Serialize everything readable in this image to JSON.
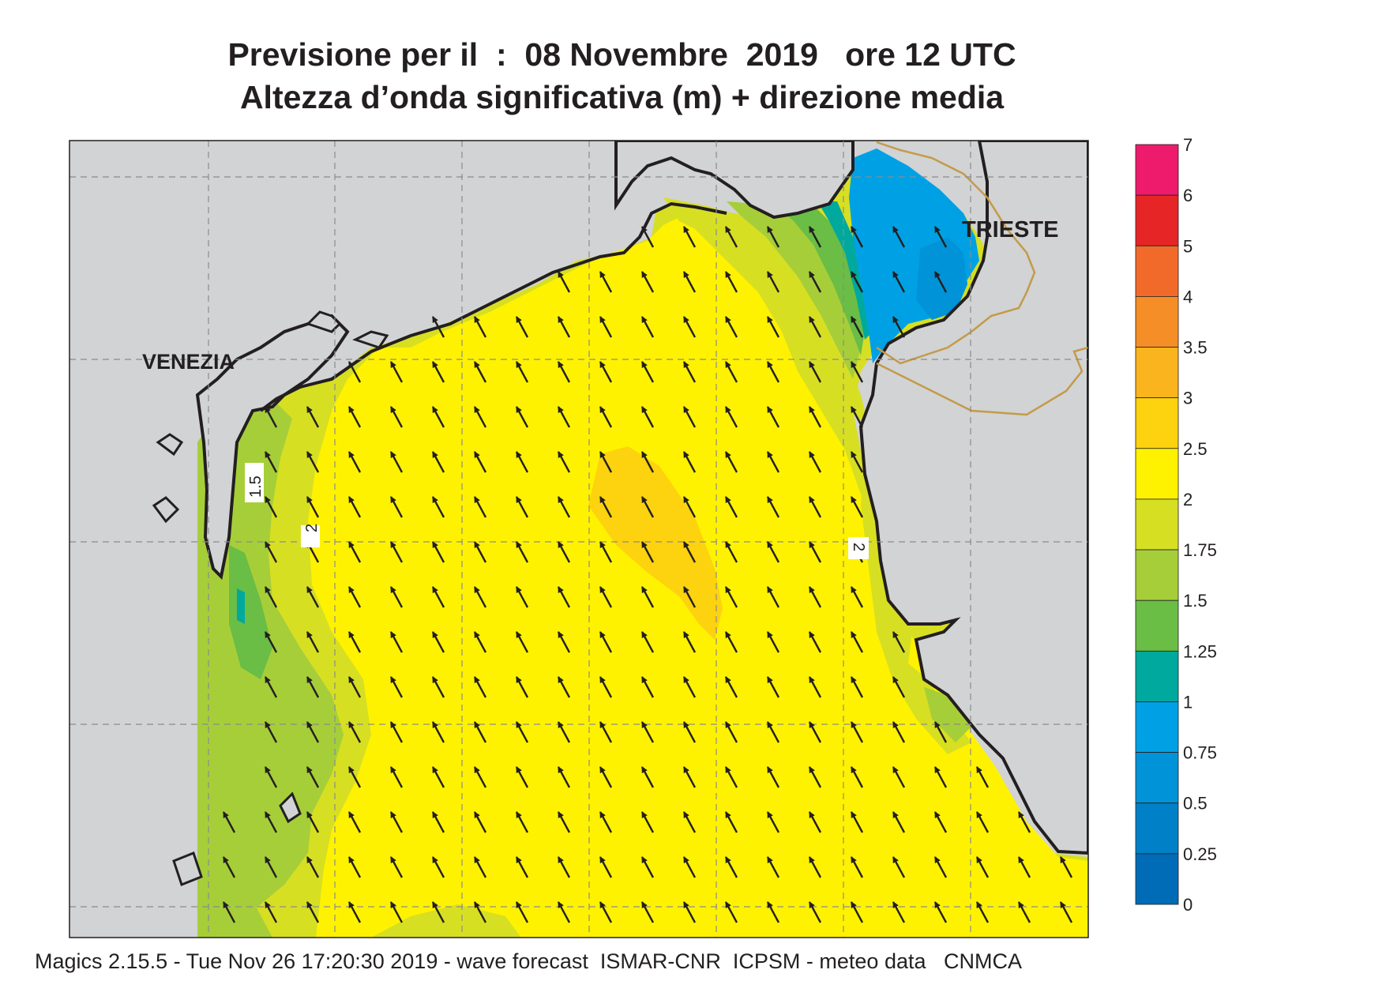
{
  "header": {
    "title": "Previsione per il  :  08 Novembre  2019   ore 12 UTC",
    "subtitle": "Altezza d’onda significativa (m) + direzione media"
  },
  "map": {
    "cities": [
      "VENEZIA",
      "TRIESTE"
    ],
    "contour_labels": [
      "1.5",
      "2",
      "2"
    ],
    "arrow_direction": "north-west"
  },
  "legend": {
    "levels": [
      {
        "label": "7",
        "color": "#ee1a6b"
      },
      {
        "label": "6",
        "color": "#e62527"
      },
      {
        "label": "5",
        "color": "#f26a2a"
      },
      {
        "label": "4",
        "color": "#f58e26"
      },
      {
        "label": "3.5",
        "color": "#fab41d"
      },
      {
        "label": "3",
        "color": "#fdd20e"
      },
      {
        "label": "2.5",
        "color": "#fff200"
      },
      {
        "label": "2",
        "color": "#d7df23"
      },
      {
        "label": "1.75",
        "color": "#a6ce39"
      },
      {
        "label": "1.5",
        "color": "#6abd45"
      },
      {
        "label": "1.25",
        "color": "#00a99d"
      },
      {
        "label": "1",
        "color": "#00a1e4"
      },
      {
        "label": "0.75",
        "color": "#0093d8"
      },
      {
        "label": "0.5",
        "color": "#0080c6"
      },
      {
        "label": "0.25",
        "color": "#006bb6"
      },
      {
        "label": "0",
        "color": "#005aa8"
      }
    ]
  },
  "footer": "Magics 2.15.5 - Tue Nov 26 17:20:30 2019 - wave forecast  ISMAR-CNR  ICPSM - meteo data   CNMCA"
}
